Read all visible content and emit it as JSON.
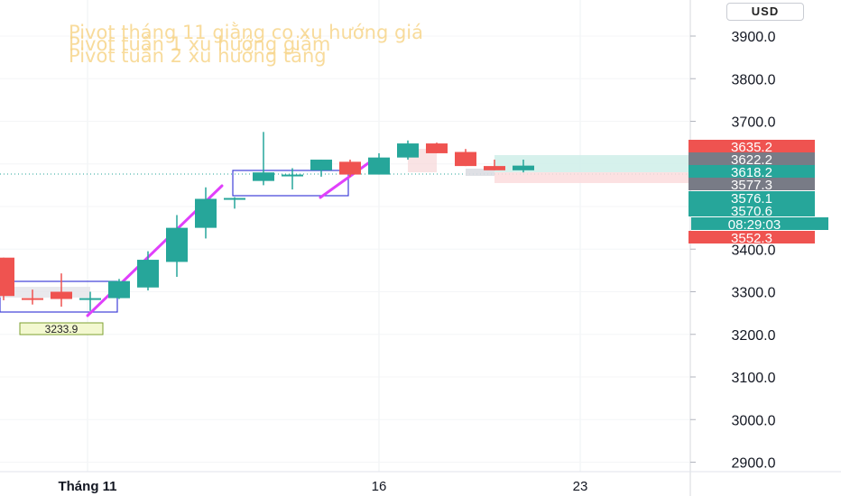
{
  "overlay": {
    "line1": "Pivot tháng 11 giằng co xu hướng giá",
    "line2": "Pivot tuần 1 xu hướng giảm",
    "line3": "Pivot tuần 2 xu hướng tăng"
  },
  "currency_button": "USD",
  "annotation_low": "3233.9",
  "colors": {
    "up": "#26a69a",
    "down": "#ef5350",
    "trend": "#e040fb",
    "box": "#3f3fd8",
    "gray_tag": "#787b86"
  },
  "chart_data": {
    "type": "candlestick",
    "title": "",
    "ylim": [
      2860,
      3960
    ],
    "y_ticks": [
      2900,
      3000,
      3100,
      3200,
      3300,
      3400,
      3500,
      3600,
      3700,
      3800,
      3900
    ],
    "y_tick_labels": [
      "2900.0",
      "3000.0",
      "3100.0",
      "3200.0",
      "3300.0",
      "3400.0",
      "3500.0",
      "3600.0",
      "3700.0",
      "3800.0",
      "3900.0"
    ],
    "x_ticks": [
      "Tháng 11",
      "16",
      "23"
    ],
    "candles": [
      {
        "open": 3380,
        "high": 3380,
        "low": 3280,
        "close": 3290
      },
      {
        "open": 3285,
        "high": 3305,
        "low": 3270,
        "close": 3283
      },
      {
        "open": 3300,
        "high": 3343,
        "low": 3265,
        "close": 3283
      },
      {
        "open": 3283,
        "high": 3300,
        "low": 3255,
        "close": 3285
      },
      {
        "open": 3285,
        "high": 3330,
        "low": 3283,
        "close": 3325
      },
      {
        "open": 3310,
        "high": 3395,
        "low": 3303,
        "close": 3375
      },
      {
        "open": 3370,
        "high": 3480,
        "low": 3335,
        "close": 3450
      },
      {
        "open": 3450,
        "high": 3545,
        "low": 3425,
        "close": 3518
      },
      {
        "open": 3518,
        "high": 3522,
        "low": 3495,
        "close": 3520
      },
      {
        "open": 3560,
        "high": 3675,
        "low": 3550,
        "close": 3580
      },
      {
        "open": 3575,
        "high": 3590,
        "low": 3540,
        "close": 3575
      },
      {
        "open": 3585,
        "high": 3610,
        "low": 3570,
        "close": 3610
      },
      {
        "open": 3605,
        "high": 3610,
        "low": 3570,
        "close": 3575
      },
      {
        "open": 3575,
        "high": 3625,
        "low": 3575,
        "close": 3615
      },
      {
        "open": 3615,
        "high": 3655,
        "low": 3610,
        "close": 3648
      },
      {
        "open": 3648,
        "high": 3650,
        "low": 3625,
        "close": 3625
      },
      {
        "open": 3628,
        "high": 3635,
        "low": 3595,
        "close": 3595
      },
      {
        "open": 3595,
        "high": 3610,
        "low": 3585,
        "close": 3585
      },
      {
        "open": 3585,
        "high": 3610,
        "low": 3580,
        "close": 3596
      }
    ],
    "price_tags": [
      {
        "label": "3635.2",
        "value": 3635.2,
        "color": "#ef5350"
      },
      {
        "label": "3622.2",
        "value": 3622.2,
        "color": "#787b86"
      },
      {
        "label": "3618.2",
        "value": 3618.2,
        "color": "#26a69a"
      },
      {
        "label": "3577.3",
        "value": 3577.3,
        "color": "#787b86"
      },
      {
        "label": "3576.1",
        "value": 3576.1,
        "color": "#26a69a"
      },
      {
        "label": "3570.6",
        "value": 3570.6,
        "color": "#26a69a"
      },
      {
        "label": "08:29:03",
        "value": 3535,
        "color": "#26a69a"
      },
      {
        "label": "3552.3",
        "value": 3552.3,
        "color": "#ef5350"
      }
    ]
  }
}
